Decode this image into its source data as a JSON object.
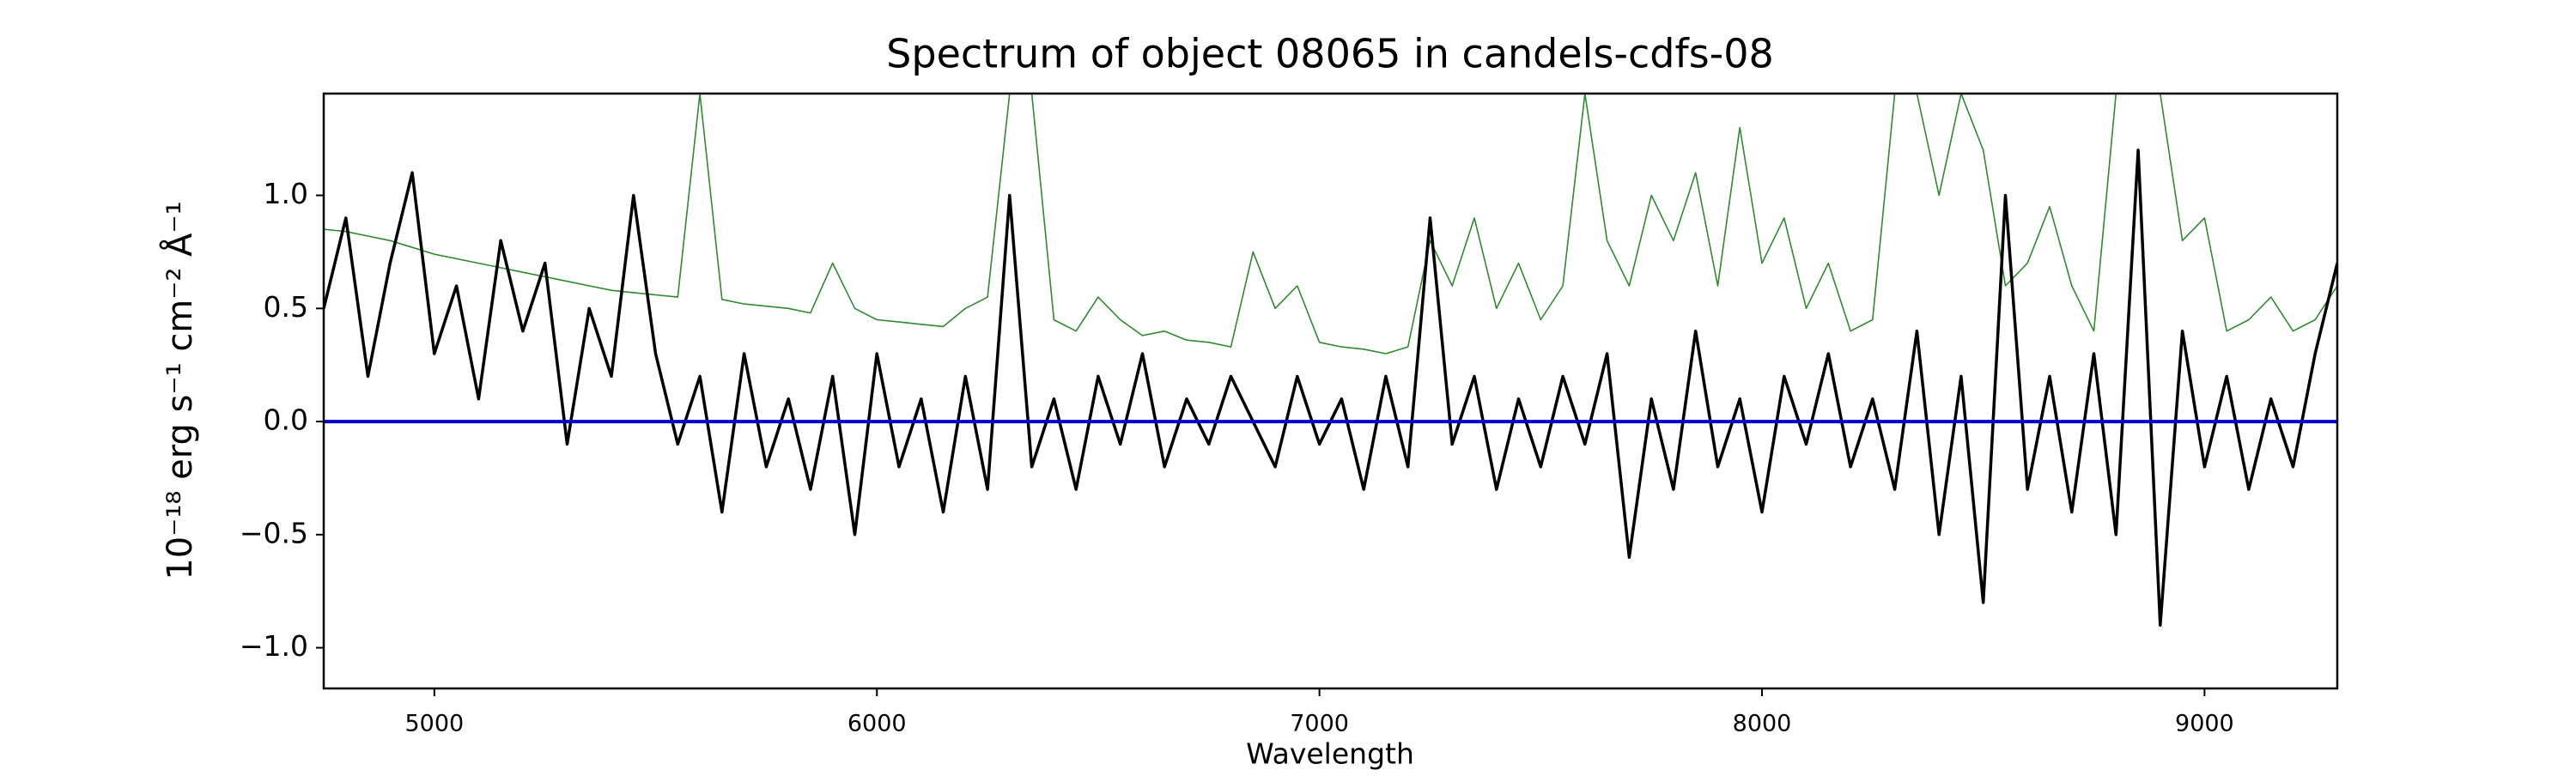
{
  "chart_data": {
    "type": "line",
    "title": "Spectrum of object 08065 in candels-cdfs-08",
    "xlabel": "Wavelength",
    "ylabel": "10⁻¹⁸ erg s⁻¹ cm⁻² Å⁻¹",
    "x": [
      4750,
      4800,
      4850,
      4900,
      4950,
      5000,
      5050,
      5100,
      5150,
      5200,
      5250,
      5300,
      5350,
      5400,
      5450,
      5500,
      5550,
      5600,
      5650,
      5700,
      5750,
      5800,
      5850,
      5900,
      5950,
      6000,
      6050,
      6100,
      6150,
      6200,
      6250,
      6300,
      6350,
      6400,
      6450,
      6500,
      6550,
      6600,
      6650,
      6700,
      6750,
      6800,
      6850,
      6900,
      6950,
      7000,
      7050,
      7100,
      7150,
      7200,
      7250,
      7300,
      7350,
      7400,
      7450,
      7500,
      7550,
      7600,
      7650,
      7700,
      7750,
      7800,
      7850,
      7900,
      7950,
      8000,
      8050,
      8100,
      8150,
      8200,
      8250,
      8300,
      8350,
      8400,
      8450,
      8500,
      8550,
      8600,
      8650,
      8700,
      8750,
      8800,
      8850,
      8900,
      8950,
      9000,
      9050,
      9100,
      9150,
      9200,
      9250,
      9300
    ],
    "series": [
      {
        "color": "#2e8b2e",
        "width": 1.6,
        "values": [
          0.85,
          0.84,
          0.82,
          0.8,
          0.77,
          0.74,
          0.72,
          0.7,
          0.68,
          0.66,
          0.64,
          0.62,
          0.6,
          0.58,
          0.57,
          0.56,
          0.55,
          1.45,
          0.54,
          0.52,
          0.51,
          0.5,
          0.48,
          0.7,
          0.5,
          0.45,
          0.44,
          0.43,
          0.42,
          0.5,
          0.55,
          1.45,
          1.45,
          0.45,
          0.4,
          0.55,
          0.45,
          0.38,
          0.4,
          0.36,
          0.35,
          0.33,
          0.75,
          0.5,
          0.6,
          0.35,
          0.33,
          0.32,
          0.3,
          0.33,
          0.8,
          0.6,
          0.9,
          0.5,
          0.7,
          0.45,
          0.6,
          1.45,
          0.8,
          0.6,
          1.0,
          0.8,
          1.1,
          0.6,
          1.3,
          0.7,
          0.9,
          0.5,
          0.7,
          0.4,
          0.45,
          1.45,
          1.45,
          1.0,
          1.45,
          1.2,
          0.6,
          0.7,
          0.95,
          0.6,
          0.4,
          1.45,
          1.45,
          1.45,
          0.8,
          0.9,
          0.4,
          0.45,
          0.55,
          0.4,
          0.45,
          0.6
        ]
      },
      {
        "color": "#000000",
        "width": 3.5,
        "values": [
          0.5,
          0.9,
          0.2,
          0.7,
          1.1,
          0.3,
          0.6,
          0.1,
          0.8,
          0.4,
          0.7,
          -0.1,
          0.5,
          0.2,
          1.0,
          0.3,
          -0.1,
          0.2,
          -0.4,
          0.3,
          -0.2,
          0.1,
          -0.3,
          0.2,
          -0.5,
          0.3,
          -0.2,
          0.1,
          -0.4,
          0.2,
          -0.3,
          1.0,
          -0.2,
          0.1,
          -0.3,
          0.2,
          -0.1,
          0.3,
          -0.2,
          0.1,
          -0.1,
          0.2,
          0.0,
          -0.2,
          0.2,
          -0.1,
          0.1,
          -0.3,
          0.2,
          -0.2,
          0.9,
          -0.1,
          0.2,
          -0.3,
          0.1,
          -0.2,
          0.2,
          -0.1,
          0.3,
          -0.6,
          0.1,
          -0.3,
          0.4,
          -0.2,
          0.1,
          -0.4,
          0.2,
          -0.1,
          0.3,
          -0.2,
          0.1,
          -0.3,
          0.4,
          -0.5,
          0.2,
          -0.8,
          1.0,
          -0.3,
          0.2,
          -0.4,
          0.3,
          -0.5,
          1.2,
          -0.9,
          0.4,
          -0.2,
          0.2,
          -0.3,
          0.1,
          -0.2,
          0.3,
          0.7
        ]
      }
    ],
    "hline": {
      "value": 0,
      "color": "#0000cc"
    },
    "xlim": [
      4750,
      9300
    ],
    "ylim": [
      -1.18,
      1.45
    ],
    "xticks": [
      5000,
      6000,
      7000,
      8000,
      9000
    ],
    "yticks": [
      {
        "value": -1.0,
        "label": "−1.0"
      },
      {
        "value": -0.5,
        "label": "−0.5"
      },
      {
        "value": 0,
        "label": "0.0"
      },
      {
        "value": 0.5,
        "label": "0.5"
      },
      {
        "value": 1.0,
        "label": "1.0"
      }
    ]
  }
}
